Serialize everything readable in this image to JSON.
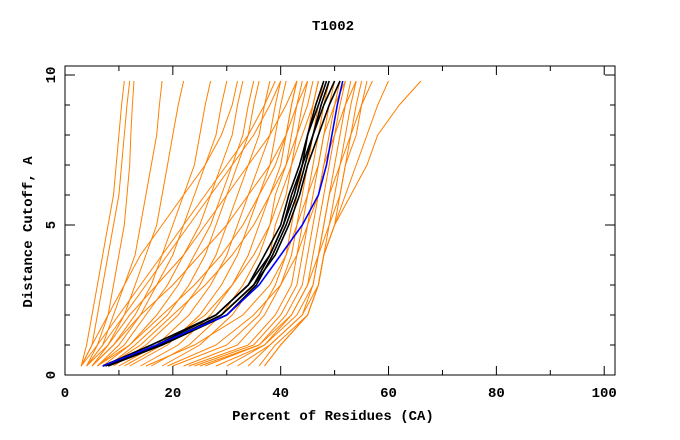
{
  "chart_data": {
    "type": "line",
    "title": "T1002",
    "xlabel": "Percent of Residues (CA)",
    "ylabel": "Distance Cutoff, A",
    "xlim": [
      0,
      102
    ],
    "ylim": [
      0,
      10.3
    ],
    "xticks": [
      0,
      20,
      40,
      60,
      80,
      100
    ],
    "yticks": [
      0,
      5,
      10
    ],
    "grid": false,
    "colors": {
      "models": "#ff8000",
      "highlight": "#000000",
      "reference": "#0000ff"
    },
    "y_levels": [
      0.3,
      1,
      2,
      3,
      4,
      5,
      6,
      7,
      8,
      9,
      9.8
    ],
    "series_orange": [
      [
        3,
        4,
        5,
        6,
        7,
        8,
        9,
        9.5,
        10,
        10.5,
        11
      ],
      [
        3,
        5,
        6,
        7,
        8,
        9,
        10,
        10.5,
        11,
        11.5,
        12
      ],
      [
        4,
        6,
        8,
        9,
        10,
        11,
        11.5,
        12,
        12.2,
        12.5,
        12.8
      ],
      [
        4,
        7,
        9,
        11,
        13,
        14,
        15,
        16,
        17,
        17.5,
        18
      ],
      [
        5,
        8,
        11,
        13,
        15,
        17,
        18,
        19,
        20,
        21,
        22
      ],
      [
        5,
        9,
        13,
        16,
        18,
        20,
        22,
        24,
        25,
        26,
        27
      ],
      [
        6,
        10,
        14,
        17,
        20,
        22,
        24,
        26,
        28,
        29,
        30
      ],
      [
        6,
        11,
        15,
        19,
        22,
        25,
        27,
        29,
        31,
        32,
        33
      ],
      [
        7,
        12,
        17,
        21,
        24,
        27,
        29,
        31,
        33,
        34,
        35
      ],
      [
        8,
        13,
        19,
        23,
        26,
        28,
        30,
        32,
        34,
        35,
        36
      ],
      [
        9,
        15,
        21,
        25,
        28,
        30,
        32,
        34,
        36,
        37,
        38
      ],
      [
        10,
        17,
        23,
        27,
        30,
        32,
        34,
        36,
        38,
        39,
        40
      ],
      [
        12,
        19,
        25,
        29,
        32,
        34,
        36,
        38,
        39,
        40,
        41
      ],
      [
        14,
        21,
        27,
        31,
        34,
        36,
        38,
        40,
        41,
        42,
        43
      ],
      [
        16,
        23,
        29,
        33,
        36,
        38,
        39,
        41,
        42,
        43,
        44
      ],
      [
        18,
        25,
        31,
        35,
        38,
        39,
        41,
        42,
        43,
        44,
        45
      ],
      [
        20,
        30,
        36,
        39,
        41,
        42,
        43,
        44,
        45,
        46,
        47
      ],
      [
        22,
        32,
        37,
        40,
        42,
        43,
        44,
        45,
        46,
        47,
        48
      ],
      [
        23,
        34,
        39,
        42,
        43,
        44,
        45,
        46,
        47,
        48,
        49
      ],
      [
        24,
        35,
        40,
        43,
        44,
        45,
        46,
        47,
        48,
        49,
        50
      ],
      [
        26,
        36,
        41,
        44,
        45,
        46,
        47,
        48,
        49,
        50,
        51
      ],
      [
        28,
        37,
        42,
        45,
        46,
        47,
        48,
        49,
        50,
        51,
        52
      ],
      [
        30,
        37,
        43,
        46,
        47,
        48,
        49,
        50,
        51,
        52,
        53
      ],
      [
        32,
        38,
        44,
        46,
        47,
        49,
        50,
        51,
        52,
        53,
        54
      ],
      [
        34,
        38,
        44,
        47,
        48,
        49,
        51,
        52,
        53,
        54,
        55
      ],
      [
        36,
        39,
        45,
        47,
        48,
        50,
        51,
        52,
        54,
        55,
        56
      ],
      [
        37,
        40,
        45,
        47,
        48,
        50,
        52,
        54,
        56,
        58,
        60
      ],
      [
        37,
        40,
        45,
        47,
        48,
        50,
        53,
        56,
        58,
        62,
        66
      ],
      [
        3,
        6,
        10,
        14,
        18,
        22,
        26,
        30,
        34,
        37,
        39
      ],
      [
        4,
        8,
        12,
        17,
        22,
        26,
        30,
        34,
        38,
        41,
        43
      ],
      [
        5,
        9,
        14,
        20,
        25,
        30,
        34,
        38,
        41,
        43,
        45
      ],
      [
        8,
        14,
        20,
        26,
        31,
        35,
        38,
        41,
        43,
        45,
        46
      ],
      [
        3,
        5,
        8,
        11,
        14,
        18,
        22,
        26,
        29,
        31,
        32
      ],
      [
        4,
        7,
        11,
        15,
        19,
        23,
        27,
        31,
        35,
        38,
        40
      ],
      [
        6,
        12,
        18,
        24,
        29,
        33,
        36,
        39,
        41,
        42,
        43
      ],
      [
        11,
        18,
        26,
        31,
        35,
        38,
        40,
        42,
        44,
        46,
        47
      ],
      [
        15,
        24,
        33,
        38,
        41,
        43,
        45,
        47,
        48,
        50,
        52
      ],
      [
        19,
        28,
        35,
        40,
        43,
        45,
        47,
        48,
        50,
        52,
        54
      ],
      [
        25,
        36,
        42,
        45,
        47,
        48,
        49,
        51,
        53,
        55,
        57
      ]
    ],
    "series_black": [
      [
        7,
        18,
        29,
        35,
        38,
        40.5,
        42,
        44,
        45,
        46.5,
        48
      ],
      [
        7,
        17,
        28,
        34,
        37,
        40,
        41.5,
        43.5,
        45,
        47,
        48.5
      ],
      [
        8,
        18,
        30,
        35.5,
        38.5,
        41,
        43,
        44.5,
        46,
        47.5,
        49
      ],
      [
        7,
        16,
        28,
        34,
        38,
        40.5,
        42.5,
        44,
        46,
        48,
        50
      ],
      [
        7.5,
        17.5,
        29,
        35,
        39,
        41.5,
        43.5,
        45,
        47,
        49,
        51
      ]
    ],
    "series_blue": [
      7,
      17,
      30,
      36,
      40,
      44,
      47,
      48.5,
      49.5,
      50.5,
      51.5
    ]
  }
}
